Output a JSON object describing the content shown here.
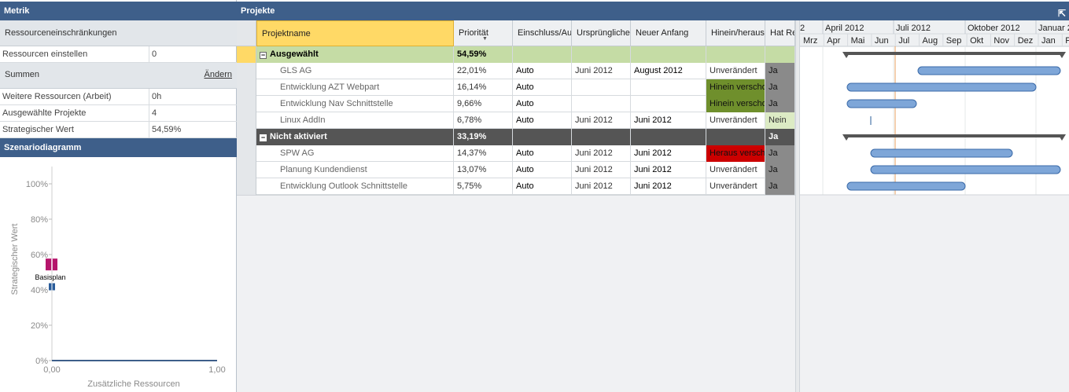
{
  "metrics": {
    "header": "Metrik",
    "constraints_label": "Ressourceneinschränkungen",
    "set_resources": {
      "label": "Ressourcen einstellen",
      "value": "0"
    },
    "sums_label": "Summen",
    "sums_link": "Ändern",
    "rows": [
      {
        "label": "Weitere Ressourcen (Arbeit)",
        "value": "0h"
      },
      {
        "label": "Ausgewählte Projekte",
        "value": "4"
      },
      {
        "label": "Strategischer Wert",
        "value": "54,59%"
      }
    ]
  },
  "scenario": {
    "header": "Szenariodiagramm",
    "y_ticks": [
      "100%",
      "80%",
      "60%",
      "40%",
      "20%",
      "0%"
    ],
    "x_ticks": [
      "0,00",
      "1,00"
    ],
    "ylabel": "Strategischer Wert",
    "xlabel": "Zusätzliche Ressourcen",
    "point_label": "Basisplan",
    "colors": {
      "selected": "#b5156b",
      "baseline": "#2a5c9a"
    }
  },
  "chart_data": {
    "type": "scatter",
    "xlabel": "Zusätzliche Ressourcen",
    "ylabel": "Strategischer Wert",
    "xlim": [
      0,
      1
    ],
    "ylim": [
      0,
      1
    ],
    "points": [
      {
        "x": 0.0,
        "y": 0.5459,
        "label": "Basisplan"
      },
      {
        "x": 0.0,
        "y": 0.42
      }
    ]
  },
  "projects": {
    "header": "Projekte",
    "columns": [
      "Projektname",
      "Priorität",
      "Einschluss/Au",
      "Ursprüngliche",
      "Neuer Anfang",
      "Hinein/heraus",
      "Hat Re"
    ],
    "groups": [
      {
        "title": "Ausgewählt",
        "priority": "54,59%",
        "rows": [
          {
            "name": "GLS AG",
            "priority": "22,01%",
            "inclusion": "Auto",
            "original": "Juni 2012",
            "new_start": "August 2012",
            "inout": "Unverändert",
            "has": "Ja"
          },
          {
            "name": "Entwicklung AZT Webpart",
            "priority": "16,14%",
            "inclusion": "Auto",
            "original": "",
            "new_start": "",
            "inout": "Hinein verscho",
            "has": "Ja"
          },
          {
            "name": "Entwicklung Nav Schnittstelle",
            "priority": "9,66%",
            "inclusion": "Auto",
            "original": "",
            "new_start": "",
            "inout": "Hinein verscho",
            "has": "Ja"
          },
          {
            "name": "Linux AddIn",
            "priority": "6,78%",
            "inclusion": "Auto",
            "original": "Juni 2012",
            "new_start": "Juni 2012",
            "inout": "Unverändert",
            "has": "Nein"
          }
        ]
      },
      {
        "title": "Nicht aktiviert",
        "priority": "33,19%",
        "has": "Ja",
        "rows": [
          {
            "name": "SPW AG",
            "priority": "14,37%",
            "inclusion": "Auto",
            "original": "Juni 2012",
            "new_start": "Juni 2012",
            "inout": "Heraus versch",
            "has": "Ja"
          },
          {
            "name": "Planung Kundendienst",
            "priority": "13,07%",
            "inclusion": "Auto",
            "original": "Juni 2012",
            "new_start": "Juni 2012",
            "inout": "Unverändert",
            "has": "Ja"
          },
          {
            "name": "Entwicklung Outlook Schnittstelle",
            "priority": "5,75%",
            "inclusion": "Auto",
            "original": "Juni 2012",
            "new_start": "Juni 2012",
            "inout": "Unverändert",
            "has": "Ja"
          }
        ]
      }
    ]
  },
  "gantt": {
    "quarters": [
      "2",
      "April 2012",
      "Juli 2012",
      "Oktober 2012",
      "Januar 2"
    ],
    "months": [
      "Mrz",
      "Apr",
      "Mai",
      "Jun",
      "Jul",
      "Aug",
      "Sep",
      "Okt",
      "Nov",
      "Dez",
      "Jan",
      "F"
    ],
    "bar_color": "#7ea6d8",
    "today_color": "#e8a060"
  }
}
